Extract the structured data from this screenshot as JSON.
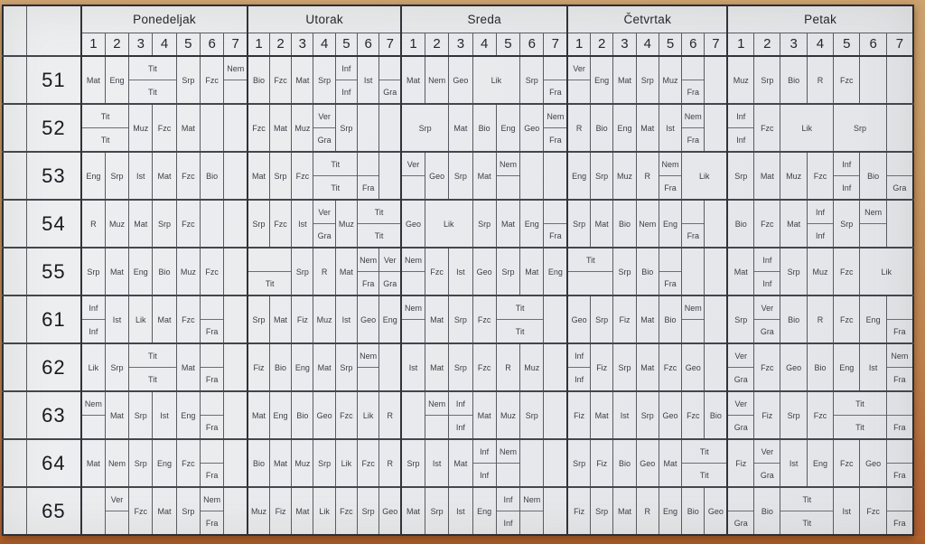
{
  "header": {
    "corner": "",
    "days": [
      "Ponedeljak",
      "Utorak",
      "Sreda",
      "Četvrtak",
      "Petak"
    ],
    "periods": [
      "1",
      "2",
      "3",
      "4",
      "5",
      "6",
      "7"
    ]
  },
  "colors": {
    "paper": "#e8eaed",
    "wood_top": "#c79a64",
    "wood_bottom": "#b05e31",
    "grid_line": "#303338",
    "text": "#3b4046"
  },
  "subject_abbreviations": [
    "Mat",
    "Eng",
    "Srp",
    "Fzc",
    "Fiz",
    "Nem",
    "Fra",
    "Bio",
    "Ist",
    "Geo",
    "Lik",
    "Muz",
    "Tit",
    "Ver",
    "Gra",
    "Inf",
    "R"
  ],
  "schedule": [
    {
      "class": "51",
      "days": [
        [
          {
            "s": "Mat"
          },
          {
            "s": "Eng"
          },
          {
            "t": "Tit",
            "b": "Tit",
            "span": 2
          },
          {
            "s": "Srp"
          },
          {
            "s": "Fzc"
          },
          {
            "t": "Nem"
          }
        ],
        [
          {
            "s": "Bio"
          },
          {
            "s": "Fzc"
          },
          {
            "s": "Mat"
          },
          {
            "s": "Srp"
          },
          {
            "t": "Inf",
            "b": "Inf"
          },
          {
            "s": "Ist"
          },
          {
            "b": "Gra"
          }
        ],
        [
          {
            "s": "Mat"
          },
          {
            "s": "Nem"
          },
          {
            "s": "Geo"
          },
          {
            "s": "Lik",
            "span": 2
          },
          {
            "s": "Srp"
          },
          {
            "b": "Fra"
          }
        ],
        [
          {
            "t": "Ver"
          },
          {
            "s": "Eng"
          },
          {
            "s": "Mat"
          },
          {
            "s": "Srp"
          },
          {
            "s": "Muz"
          },
          {
            "b": "Fra"
          },
          {}
        ],
        [
          {
            "s": "Muz"
          },
          {
            "s": "Srp"
          },
          {
            "s": "Bio"
          },
          {
            "s": "R"
          },
          {
            "s": "Fzc"
          },
          {},
          {}
        ]
      ]
    },
    {
      "class": "52",
      "days": [
        [
          {
            "t": "Tit",
            "b": "Tit",
            "span": 2
          },
          {
            "s": "Muz"
          },
          {
            "s": "Fzc"
          },
          {
            "s": "Mat"
          },
          {},
          {}
        ],
        [
          {
            "s": "Fzc"
          },
          {
            "s": "Mat"
          },
          {
            "s": "Muz"
          },
          {
            "t": "Ver",
            "b": "Gra"
          },
          {
            "s": "Srp"
          },
          {},
          {}
        ],
        [
          {
            "s": "Srp",
            "span": 2
          },
          {
            "s": "Mat"
          },
          {
            "s": "Bio"
          },
          {
            "s": "Eng"
          },
          {
            "s": "Geo"
          },
          {
            "t": "Nem",
            "b": "Fra"
          }
        ],
        [
          {
            "s": "R"
          },
          {
            "s": "Bio"
          },
          {
            "s": "Eng"
          },
          {
            "s": "Mat"
          },
          {
            "s": "Ist"
          },
          {
            "t": "Nem",
            "b": "Fra"
          },
          {}
        ],
        [
          {
            "t": "Inf",
            "b": "Inf"
          },
          {
            "s": "Fzc"
          },
          {
            "s": "Lik",
            "span": 2
          },
          {
            "s": "Srp",
            "span": 2
          },
          {}
        ]
      ]
    },
    {
      "class": "53",
      "days": [
        [
          {
            "s": "Eng"
          },
          {
            "s": "Srp"
          },
          {
            "s": "Ist"
          },
          {
            "s": "Mat"
          },
          {
            "s": "Fzc"
          },
          {
            "s": "Bio"
          },
          {}
        ],
        [
          {
            "s": "Mat"
          },
          {
            "s": "Srp"
          },
          {
            "s": "Fzc"
          },
          {
            "t": "Tit",
            "b": "Tit",
            "span": 2
          },
          {
            "b": "Fra"
          },
          {}
        ],
        [
          {
            "t": "Ver"
          },
          {
            "s": "Geo"
          },
          {
            "s": "Srp"
          },
          {
            "s": "Mat"
          },
          {
            "t": "Nem"
          },
          {},
          {}
        ],
        [
          {
            "s": "Eng"
          },
          {
            "s": "Srp"
          },
          {
            "s": "Muz"
          },
          {
            "s": "R"
          },
          {
            "t": "Nem",
            "b": "Fra"
          },
          {
            "s": "Lik",
            "span": 2
          }
        ],
        [
          {
            "s": "Srp"
          },
          {
            "s": "Mat"
          },
          {
            "s": "Muz"
          },
          {
            "s": "Fzc"
          },
          {
            "t": "Inf",
            "b": "Inf"
          },
          {
            "s": "Bio"
          },
          {
            "b": "Gra"
          }
        ]
      ]
    },
    {
      "class": "54",
      "days": [
        [
          {
            "s": "R"
          },
          {
            "s": "Muz"
          },
          {
            "s": "Mat"
          },
          {
            "s": "Srp"
          },
          {
            "s": "Fzc"
          },
          {},
          {}
        ],
        [
          {
            "s": "Srp"
          },
          {
            "s": "Fzc"
          },
          {
            "s": "Ist"
          },
          {
            "t": "Ver",
            "b": "Gra"
          },
          {
            "s": "Muz"
          },
          {
            "t": "Tit",
            "b": "Tit",
            "span": 2
          }
        ],
        [
          {
            "s": "Geo"
          },
          {
            "s": "Lik",
            "span": 2
          },
          {
            "s": "Srp"
          },
          {
            "s": "Mat"
          },
          {
            "s": "Eng"
          },
          {
            "b": "Fra"
          }
        ],
        [
          {
            "s": "Srp"
          },
          {
            "s": "Mat"
          },
          {
            "s": "Bio"
          },
          {
            "s": "Nem"
          },
          {
            "s": "Eng"
          },
          {
            "b": "Fra"
          },
          {}
        ],
        [
          {
            "s": "Bio"
          },
          {
            "s": "Fzc"
          },
          {
            "s": "Mat"
          },
          {
            "t": "Inf",
            "b": "Inf"
          },
          {
            "s": "Srp"
          },
          {
            "t": "Nem"
          },
          {}
        ]
      ]
    },
    {
      "class": "55",
      "days": [
        [
          {
            "s": "Srp"
          },
          {
            "s": "Mat"
          },
          {
            "s": "Eng"
          },
          {
            "s": "Bio"
          },
          {
            "s": "Muz"
          },
          {
            "s": "Fzc"
          },
          {}
        ],
        [
          {
            "b": "Tit",
            "span": 2
          },
          {
            "s": "Srp"
          },
          {
            "s": "R"
          },
          {
            "s": "Mat"
          },
          {
            "t": "Nem",
            "b": "Fra"
          },
          {
            "t": "Ver",
            "b": "Gra"
          }
        ],
        [
          {
            "t": "Nem"
          },
          {
            "s": "Fzc"
          },
          {
            "s": "Ist"
          },
          {
            "s": "Geo"
          },
          {
            "s": "Srp"
          },
          {
            "s": "Mat"
          },
          {
            "s": "Eng"
          }
        ],
        [
          {
            "t": "Tit",
            "span": 2
          },
          {
            "s": "Srp"
          },
          {
            "s": "Bio"
          },
          {
            "b": "Fra"
          },
          {},
          {}
        ],
        [
          {
            "s": "Mat"
          },
          {
            "t": "Inf",
            "b": "Inf"
          },
          {
            "s": "Srp"
          },
          {
            "s": "Muz"
          },
          {
            "s": "Fzc"
          },
          {
            "s": "Lik",
            "span": 2
          }
        ]
      ]
    },
    {
      "class": "61",
      "days": [
        [
          {
            "t": "Inf",
            "b": "Inf"
          },
          {
            "s": "Ist"
          },
          {
            "s": "Lik"
          },
          {
            "s": "Mat"
          },
          {
            "s": "Fzc"
          },
          {
            "b": "Fra"
          },
          {}
        ],
        [
          {
            "s": "Srp"
          },
          {
            "s": "Mat"
          },
          {
            "s": "Fiz"
          },
          {
            "s": "Muz"
          },
          {
            "s": "Ist"
          },
          {
            "s": "Geo"
          },
          {
            "s": "Eng"
          }
        ],
        [
          {
            "t": "Nem"
          },
          {
            "s": "Mat"
          },
          {
            "s": "Srp"
          },
          {
            "s": "Fzc"
          },
          {
            "t": "Tit",
            "b": "Tit",
            "span": 2
          },
          {}
        ],
        [
          {
            "s": "Geo"
          },
          {
            "s": "Srp"
          },
          {
            "s": "Fiz"
          },
          {
            "s": "Mat"
          },
          {
            "s": "Bio"
          },
          {
            "t": "Nem"
          },
          {}
        ],
        [
          {
            "s": "Srp"
          },
          {
            "t": "Ver",
            "b": "Gra"
          },
          {
            "s": "Bio"
          },
          {
            "s": "R"
          },
          {
            "s": "Fzc"
          },
          {
            "s": "Eng"
          },
          {
            "b": "Fra"
          }
        ]
      ]
    },
    {
      "class": "62",
      "days": [
        [
          {
            "s": "Lik"
          },
          {
            "s": "Srp"
          },
          {
            "t": "Tit",
            "b": "Tit",
            "span": 2
          },
          {
            "s": "Mat"
          },
          {
            "b": "Fra"
          },
          {}
        ],
        [
          {
            "s": "Fiz"
          },
          {
            "s": "Bio"
          },
          {
            "s": "Eng"
          },
          {
            "s": "Mat"
          },
          {
            "s": "Srp"
          },
          {
            "t": "Nem"
          },
          {}
        ],
        [
          {
            "s": "Ist"
          },
          {
            "s": "Mat"
          },
          {
            "s": "Srp"
          },
          {
            "s": "Fzc"
          },
          {
            "s": "R"
          },
          {
            "s": "Muz"
          },
          {}
        ],
        [
          {
            "t": "Inf",
            "b": "Inf"
          },
          {
            "s": "Fiz"
          },
          {
            "s": "Srp"
          },
          {
            "s": "Mat"
          },
          {
            "s": "Fzc"
          },
          {
            "s": "Geo"
          },
          {}
        ],
        [
          {
            "t": "Ver",
            "b": "Gra"
          },
          {
            "s": "Fzc"
          },
          {
            "s": "Geo"
          },
          {
            "s": "Bio"
          },
          {
            "s": "Eng"
          },
          {
            "s": "Ist"
          },
          {
            "t": "Nem",
            "b": "Fra"
          }
        ]
      ]
    },
    {
      "class": "63",
      "days": [
        [
          {
            "t": "Nem"
          },
          {
            "s": "Mat"
          },
          {
            "s": "Srp"
          },
          {
            "s": "Ist"
          },
          {
            "s": "Eng"
          },
          {
            "b": "Fra"
          },
          {}
        ],
        [
          {
            "s": "Mat"
          },
          {
            "s": "Eng"
          },
          {
            "s": "Bio"
          },
          {
            "s": "Geo"
          },
          {
            "s": "Fzc"
          },
          {
            "s": "Lik"
          },
          {
            "s": "R"
          }
        ],
        [
          {},
          {
            "t": "Nem"
          },
          {
            "t": "Inf",
            "b": "Inf"
          },
          {
            "s": "Mat"
          },
          {
            "s": "Muz"
          },
          {
            "s": "Srp"
          },
          {}
        ],
        [
          {
            "s": "Fiz"
          },
          {
            "s": "Mat"
          },
          {
            "s": "Ist"
          },
          {
            "s": "Srp"
          },
          {
            "s": "Geo"
          },
          {
            "s": "Fzc"
          },
          {
            "s": "Bio"
          }
        ],
        [
          {
            "t": "Ver",
            "b": "Gra"
          },
          {
            "s": "Fiz"
          },
          {
            "s": "Srp"
          },
          {
            "s": "Fzc"
          },
          {
            "t": "Tit",
            "b": "Tit",
            "span": 2
          },
          {
            "b": "Fra"
          }
        ]
      ]
    },
    {
      "class": "64",
      "days": [
        [
          {
            "s": "Mat"
          },
          {
            "s": "Nem"
          },
          {
            "s": "Srp"
          },
          {
            "s": "Eng"
          },
          {
            "s": "Fzc"
          },
          {
            "b": "Fra"
          },
          {}
        ],
        [
          {
            "s": "Bio"
          },
          {
            "s": "Mat"
          },
          {
            "s": "Muz"
          },
          {
            "s": "Srp"
          },
          {
            "s": "Lik"
          },
          {
            "s": "Fzc"
          },
          {
            "s": "R"
          }
        ],
        [
          {
            "s": "Srp"
          },
          {
            "s": "Ist"
          },
          {
            "s": "Mat"
          },
          {
            "t": "Inf",
            "b": "Inf"
          },
          {
            "t": "Nem"
          },
          {},
          {}
        ],
        [
          {
            "s": "Srp"
          },
          {
            "s": "Fiz"
          },
          {
            "s": "Bio"
          },
          {
            "s": "Geo"
          },
          {
            "s": "Mat"
          },
          {
            "t": "Tit",
            "b": "Tit",
            "span": 2
          }
        ],
        [
          {
            "s": "Fiz"
          },
          {
            "t": "Ver",
            "b": "Gra"
          },
          {
            "s": "Ist"
          },
          {
            "s": "Eng"
          },
          {
            "s": "Fzc"
          },
          {
            "s": "Geo"
          },
          {
            "b": "Fra"
          }
        ]
      ]
    },
    {
      "class": "65",
      "days": [
        [
          {},
          {
            "t": "Ver"
          },
          {
            "s": "Fzc"
          },
          {
            "s": "Mat"
          },
          {
            "s": "Srp"
          },
          {
            "t": "Nem",
            "b": "Fra"
          },
          {}
        ],
        [
          {
            "s": "Muz"
          },
          {
            "s": "Fiz"
          },
          {
            "s": "Mat"
          },
          {
            "s": "Lik"
          },
          {
            "s": "Fzc"
          },
          {
            "s": "Srp"
          },
          {
            "s": "Geo"
          }
        ],
        [
          {
            "s": "Mat"
          },
          {
            "s": "Srp"
          },
          {
            "s": "Ist"
          },
          {
            "s": "Eng"
          },
          {
            "t": "Inf",
            "b": "Inf"
          },
          {
            "t": "Nem"
          },
          {}
        ],
        [
          {
            "s": "Fiz"
          },
          {
            "s": "Srp"
          },
          {
            "s": "Mat"
          },
          {
            "s": "R"
          },
          {
            "s": "Eng"
          },
          {
            "s": "Bio"
          },
          {
            "s": "Geo"
          }
        ],
        [
          {
            "b": "Gra"
          },
          {
            "s": "Bio"
          },
          {
            "t": "Tit",
            "b": "Tit",
            "span": 2
          },
          {
            "s": "Ist"
          },
          {
            "s": "Fzc"
          },
          {
            "b": "Fra"
          }
        ]
      ]
    }
  ]
}
